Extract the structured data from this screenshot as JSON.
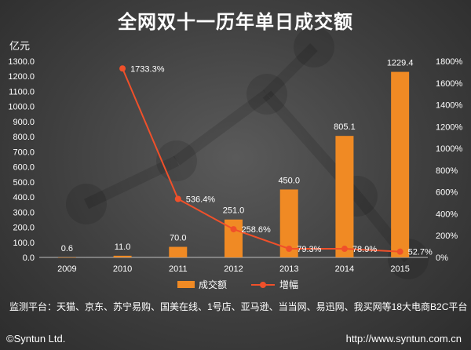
{
  "page": {
    "footer_note": "监测平台：天猫、京东、苏宁易购、国美在线、1号店、亚马逊、当当网、易迅网、我买网等18大电商B2C平台",
    "copyright": "©Syntun Ltd.",
    "url": "http://www.syntun.com.cn"
  },
  "chart_data": {
    "type": "bar",
    "title": "全网双十一历年单日成交额",
    "ylabel": "亿元",
    "categories": [
      "2009",
      "2010",
      "2011",
      "2012",
      "2013",
      "2014",
      "2015"
    ],
    "ylim": [
      0,
      1300
    ],
    "y_ticks": [
      "0.0",
      "100.0",
      "200.0",
      "300.0",
      "400.0",
      "500.0",
      "600.0",
      "700.0",
      "800.0",
      "900.0",
      "1000.0",
      "1100.0",
      "1200.0",
      "1300.0"
    ],
    "y2lim": [
      0,
      1800
    ],
    "y2_ticks": [
      "0%",
      "200%",
      "400%",
      "600%",
      "800%",
      "1000%",
      "1200%",
      "1400%",
      "1600%",
      "1800%"
    ],
    "series": [
      {
        "name": "成交额",
        "type": "bar",
        "color": "#f08a24",
        "values": [
          0.6,
          11.0,
          70.0,
          251.0,
          450.0,
          805.1,
          1229.4
        ],
        "labels": [
          "0.6",
          "11.0",
          "70.0",
          "251.0",
          "450.0",
          "805.1",
          "1229.4"
        ]
      },
      {
        "name": "增幅",
        "type": "line",
        "axis": "right",
        "color": "#f0502a",
        "values": [
          null,
          1733.3,
          536.4,
          258.6,
          79.3,
          78.9,
          52.7
        ],
        "labels": [
          "",
          "1733.3%",
          "536.4%",
          "258.6%",
          "79.3%",
          "78.9%",
          "52.7%"
        ]
      }
    ],
    "legend_position": "bottom"
  }
}
